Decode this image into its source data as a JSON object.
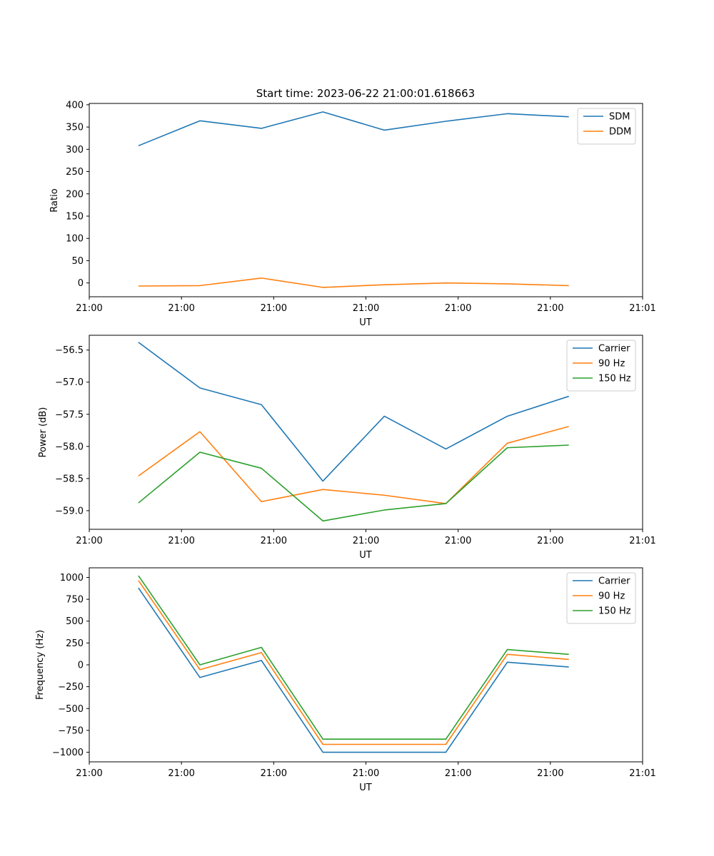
{
  "chart_data": [
    {
      "type": "line",
      "title": "Start time: 2023-06-22 21:00:01.618663",
      "xlabel": "UT",
      "ylabel": "Ratio",
      "x": [
        1,
        2,
        3,
        4,
        5,
        6,
        7,
        8
      ],
      "xlim": [
        0.2,
        9.2
      ],
      "xticks": [
        0.2,
        1.7,
        3.2,
        4.7,
        6.2,
        7.7,
        9.2
      ],
      "xtick_labels": [
        "21:00",
        "21:00",
        "21:00",
        "21:00",
        "21:00",
        "21:00",
        "21:01"
      ],
      "ylim": [
        -31,
        403
      ],
      "yticks": [
        0,
        50,
        100,
        150,
        200,
        250,
        300,
        350,
        400
      ],
      "ytick_labels": [
        "0",
        "50",
        "100",
        "150",
        "200",
        "250",
        "300",
        "350",
        "400"
      ],
      "legend": "top-right",
      "series": [
        {
          "name": "SDM",
          "color": "#1f77b4",
          "values": [
            308,
            364,
            347,
            384,
            343,
            363,
            380,
            373
          ]
        },
        {
          "name": "DDM",
          "color": "#ff7f0e",
          "values": [
            -7,
            -6,
            11,
            -10,
            -4,
            0,
            -2,
            -6
          ]
        }
      ]
    },
    {
      "type": "line",
      "title": "",
      "xlabel": "UT",
      "ylabel": "Power (dB)",
      "x": [
        1,
        2,
        3,
        4,
        5,
        6,
        7,
        8
      ],
      "xlim": [
        0.2,
        9.2
      ],
      "xticks": [
        0.2,
        1.7,
        3.2,
        4.7,
        6.2,
        7.7,
        9.2
      ],
      "xtick_labels": [
        "21:00",
        "21:00",
        "21:00",
        "21:00",
        "21:00",
        "21:00",
        "21:01"
      ],
      "ylim": [
        -59.29,
        -56.27
      ],
      "yticks": [
        -59.0,
        -58.5,
        -58.0,
        -57.5,
        -57.0,
        -56.5
      ],
      "ytick_labels": [
        "−59.0",
        "−58.5",
        "−58.0",
        "−57.5",
        "−57.0",
        "−56.5"
      ],
      "legend": "top-right",
      "series": [
        {
          "name": "Carrier",
          "color": "#1f77b4",
          "values": [
            -56.38,
            -57.09,
            -57.35,
            -58.54,
            -57.53,
            -58.04,
            -57.53,
            -57.22
          ]
        },
        {
          "name": "90 Hz",
          "color": "#ff7f0e",
          "values": [
            -58.46,
            -57.77,
            -58.86,
            -58.67,
            -58.76,
            -58.89,
            -57.95,
            -57.69
          ]
        },
        {
          "name": "150 Hz",
          "color": "#2ca02c",
          "values": [
            -58.88,
            -58.09,
            -58.34,
            -59.16,
            -58.99,
            -58.89,
            -58.02,
            -57.98
          ]
        }
      ]
    },
    {
      "type": "line",
      "title": "",
      "xlabel": "UT",
      "ylabel": "Frequency (Hz)",
      "x": [
        1,
        2,
        3,
        4,
        5,
        6,
        7,
        8
      ],
      "xlim": [
        0.2,
        9.2
      ],
      "xticks": [
        0.2,
        1.7,
        3.2,
        4.7,
        6.2,
        7.7,
        9.2
      ],
      "xtick_labels": [
        "21:00",
        "21:00",
        "21:00",
        "21:00",
        "21:00",
        "21:00",
        "21:01"
      ],
      "ylim": [
        -1110,
        1110
      ],
      "yticks": [
        -1000,
        -750,
        -500,
        -250,
        0,
        250,
        500,
        750,
        1000
      ],
      "ytick_labels": [
        "−1000",
        "−750",
        "−500",
        "−250",
        "0",
        "250",
        "500",
        "750",
        "1000"
      ],
      "legend": "top-right",
      "series": [
        {
          "name": "Carrier",
          "color": "#1f77b4",
          "values": [
            880,
            -145,
            50,
            -1000,
            -1000,
            -1000,
            30,
            -25
          ]
        },
        {
          "name": "90 Hz",
          "color": "#ff7f0e",
          "values": [
            965,
            -55,
            140,
            -910,
            -910,
            -910,
            120,
            62
          ]
        },
        {
          "name": "150 Hz",
          "color": "#2ca02c",
          "values": [
            1020,
            0,
            200,
            -850,
            -850,
            -850,
            175,
            120
          ]
        }
      ]
    }
  ]
}
